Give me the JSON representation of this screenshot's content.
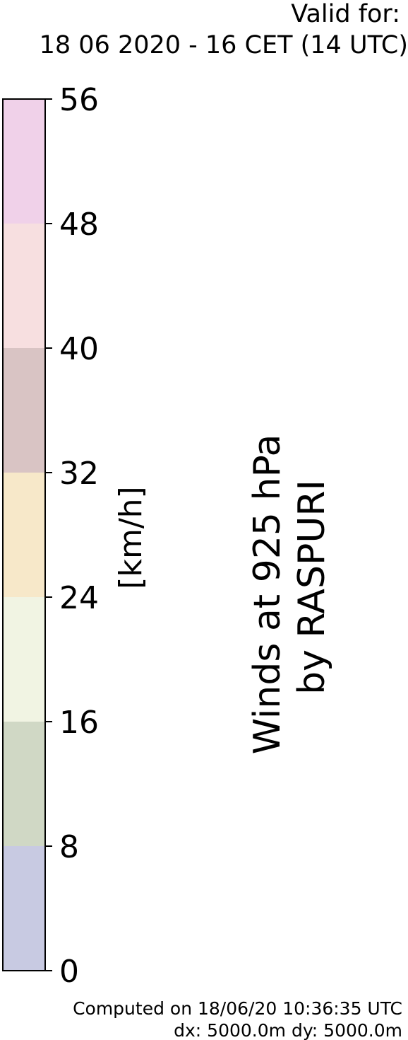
{
  "header": {
    "valid_label": "Valid for:",
    "valid_date": "18 06 2020 - 16 CET (14 UTC)"
  },
  "chart_data": {
    "type": "colorbar",
    "unit_label": "[km/h]",
    "title_lines": [
      "Winds at 925 hPa",
      "by RASPURI"
    ],
    "range": [
      0,
      56
    ],
    "ticks": [
      0,
      8,
      16,
      24,
      32,
      40,
      48,
      56
    ],
    "tick_labels": [
      "0",
      "8",
      "16",
      "24",
      "32",
      "40",
      "48",
      "56"
    ],
    "bins": [
      {
        "from": 0,
        "to": 8,
        "color": "#c8cae2"
      },
      {
        "from": 8,
        "to": 16,
        "color": "#d0d8c5"
      },
      {
        "from": 16,
        "to": 24,
        "color": "#f1f4e3"
      },
      {
        "from": 24,
        "to": 32,
        "color": "#f7e8c9"
      },
      {
        "from": 32,
        "to": 40,
        "color": "#d9c4c4"
      },
      {
        "from": 40,
        "to": 48,
        "color": "#f7dfe0"
      },
      {
        "from": 48,
        "to": 56,
        "color": "#f0d1e9"
      }
    ]
  },
  "footer": {
    "computed": "Computed on 18/06/20 10:36:35 UTC",
    "resolution": "dx: 5000.0m dy: 5000.0m"
  }
}
